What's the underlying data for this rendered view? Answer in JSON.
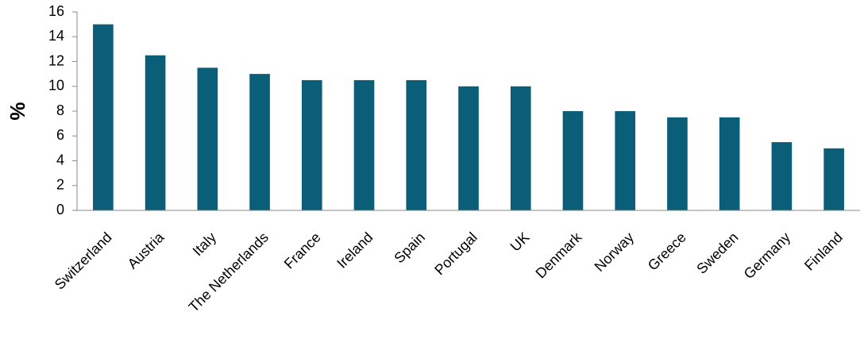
{
  "chart_data": {
    "type": "bar",
    "title": "",
    "xlabel": "",
    "ylabel": "%",
    "ylim": [
      0,
      16
    ],
    "yticks": [
      0,
      2,
      4,
      6,
      8,
      10,
      12,
      14,
      16
    ],
    "grid": false,
    "legend": "none",
    "bar_color": "#0b5e78",
    "categories": [
      "Switzerland",
      "Austria",
      "Italy",
      "The Netherlands",
      "France",
      "Ireland",
      "Spain",
      "Portugal",
      "UK",
      "Denmark",
      "Norway",
      "Greece",
      "Sweden",
      "Germany",
      "Finland"
    ],
    "values": [
      15,
      12.5,
      11.5,
      11,
      10.5,
      10.5,
      10.5,
      10,
      10,
      8,
      8,
      7.5,
      7.5,
      5.5,
      5
    ]
  }
}
